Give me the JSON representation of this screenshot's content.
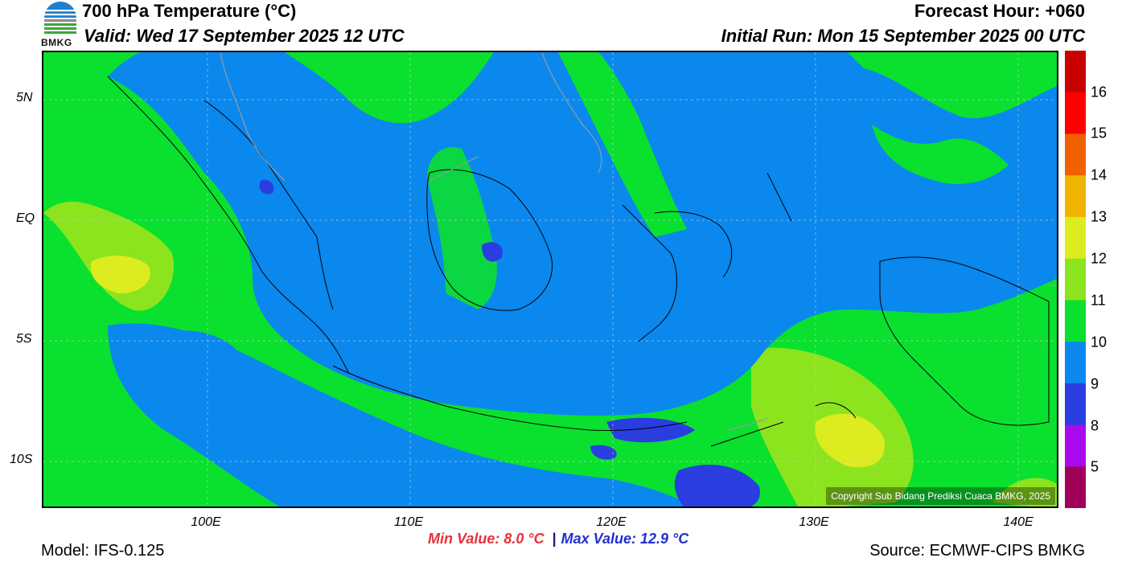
{
  "header": {
    "title": "700 hPa Temperature (°C)",
    "valid": "Valid: Wed 17 September 2025 12 UTC",
    "forecast_hour": "Forecast Hour: +060",
    "initial_run": "Initial Run: Mon 15 September 2025 00 UTC"
  },
  "logo": {
    "text": "BMKG",
    "icon": "bmkg-logo-icon"
  },
  "map": {
    "lat_labels": [
      "5N",
      "EQ",
      "5S",
      "10S"
    ],
    "lon_labels": [
      "100E",
      "110E",
      "120E",
      "130E",
      "140E"
    ],
    "copyright": "Copyright Sub Bidang Prediksi Cuaca BMKG, 2025"
  },
  "colorbar": {
    "labels": [
      "16",
      "15",
      "14",
      "13",
      "12",
      "11",
      "10",
      "9",
      "8",
      "5"
    ],
    "colors": [
      "#c80000",
      "#ff0000",
      "#f06000",
      "#f0b400",
      "#dcec1e",
      "#8ce41e",
      "#0ae02e",
      "#0a88ee",
      "#2a3ee0",
      "#aa0aee",
      "#a0005a"
    ]
  },
  "stats": {
    "min": "Min Value: 8.0 °C",
    "separator": "|",
    "max": "Max Value: 12.9 °C"
  },
  "footer": {
    "model": "Model: IFS-0.125",
    "source": "Source: ECMWF-CIPS BMKG"
  }
}
